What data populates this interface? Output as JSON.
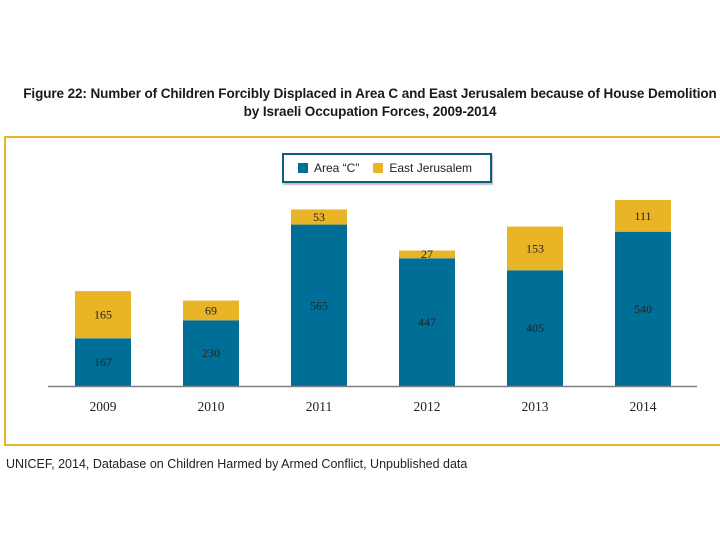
{
  "chart_data": {
    "type": "bar",
    "stacked": true,
    "title_lines": [
      "Figure  22: Number of Children Forcibly Displaced in Area C and East Jerusalem because of House Demolition",
      "by Israeli Occupation Forces, 2009-2014"
    ],
    "categories": [
      "2009",
      "2010",
      "2011",
      "2012",
      "2013",
      "2014"
    ],
    "series": [
      {
        "name": "Area “C”",
        "color": "#006f98",
        "values": [
          167,
          230,
          565,
          447,
          405,
          540
        ]
      },
      {
        "name": "East Jerusalem",
        "color": "#e9b425",
        "values": [
          165,
          69,
          53,
          27,
          153,
          111
        ]
      }
    ],
    "xlabel": "",
    "ylabel": "",
    "ylim": [
      0,
      700
    ],
    "grid": false,
    "legend_position": "top-center",
    "data_labels": true
  },
  "source": "UNICEF, 2014, Database on Children Harmed by Armed Conflict, Unpublished data"
}
